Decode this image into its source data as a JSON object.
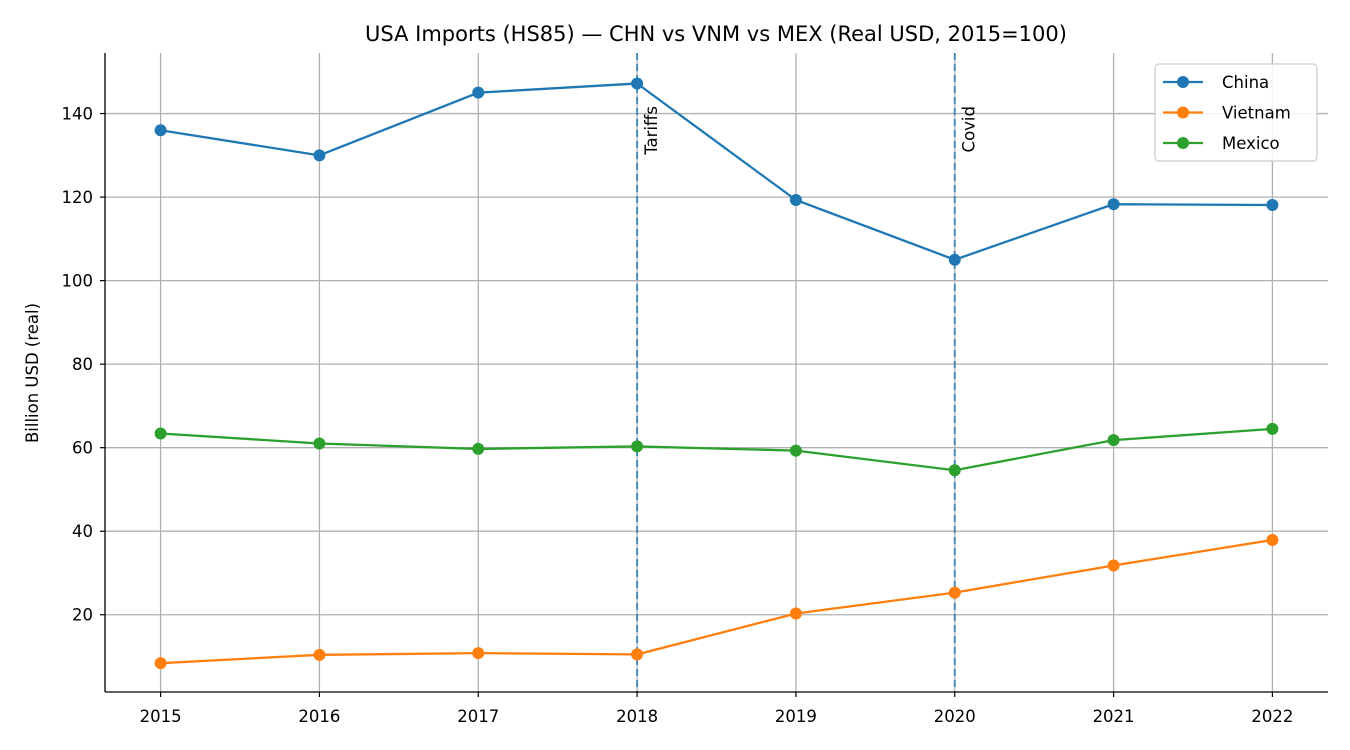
{
  "chart_data": {
    "type": "line",
    "title": "USA Imports (HS85) — CHN vs VNM vs MEX (Real USD, 2015=100)",
    "xlabel": "",
    "ylabel": "Billion USD (real)",
    "x": [
      "2015",
      "2016",
      "2017",
      "2018",
      "2019",
      "2020",
      "2021",
      "2022"
    ],
    "xlim": [
      2014.65,
      2022.35
    ],
    "ylim": [
      1.5,
      154.5
    ],
    "yticks": [
      20,
      40,
      60,
      80,
      100,
      120,
      140
    ],
    "grid": true,
    "legend_position": "top-right",
    "series": [
      {
        "name": "China",
        "color": "#1f77b4",
        "values": [
          136.0,
          130.0,
          145.0,
          147.2,
          119.3,
          105.0,
          118.3,
          118.1
        ]
      },
      {
        "name": "Vietnam",
        "color": "#ff7f0e",
        "values": [
          8.4,
          10.4,
          10.8,
          10.5,
          20.3,
          25.3,
          31.8,
          37.9
        ]
      },
      {
        "name": "Mexico",
        "color": "#2ca02c",
        "values": [
          63.4,
          61.0,
          59.7,
          60.3,
          59.3,
          54.6,
          61.8,
          64.5
        ]
      }
    ],
    "annotations": [
      {
        "x": 2018,
        "label": "Tariffs",
        "color": "#1f77b4"
      },
      {
        "x": 2020,
        "label": "Covid",
        "color": "#1f77b4"
      }
    ]
  }
}
